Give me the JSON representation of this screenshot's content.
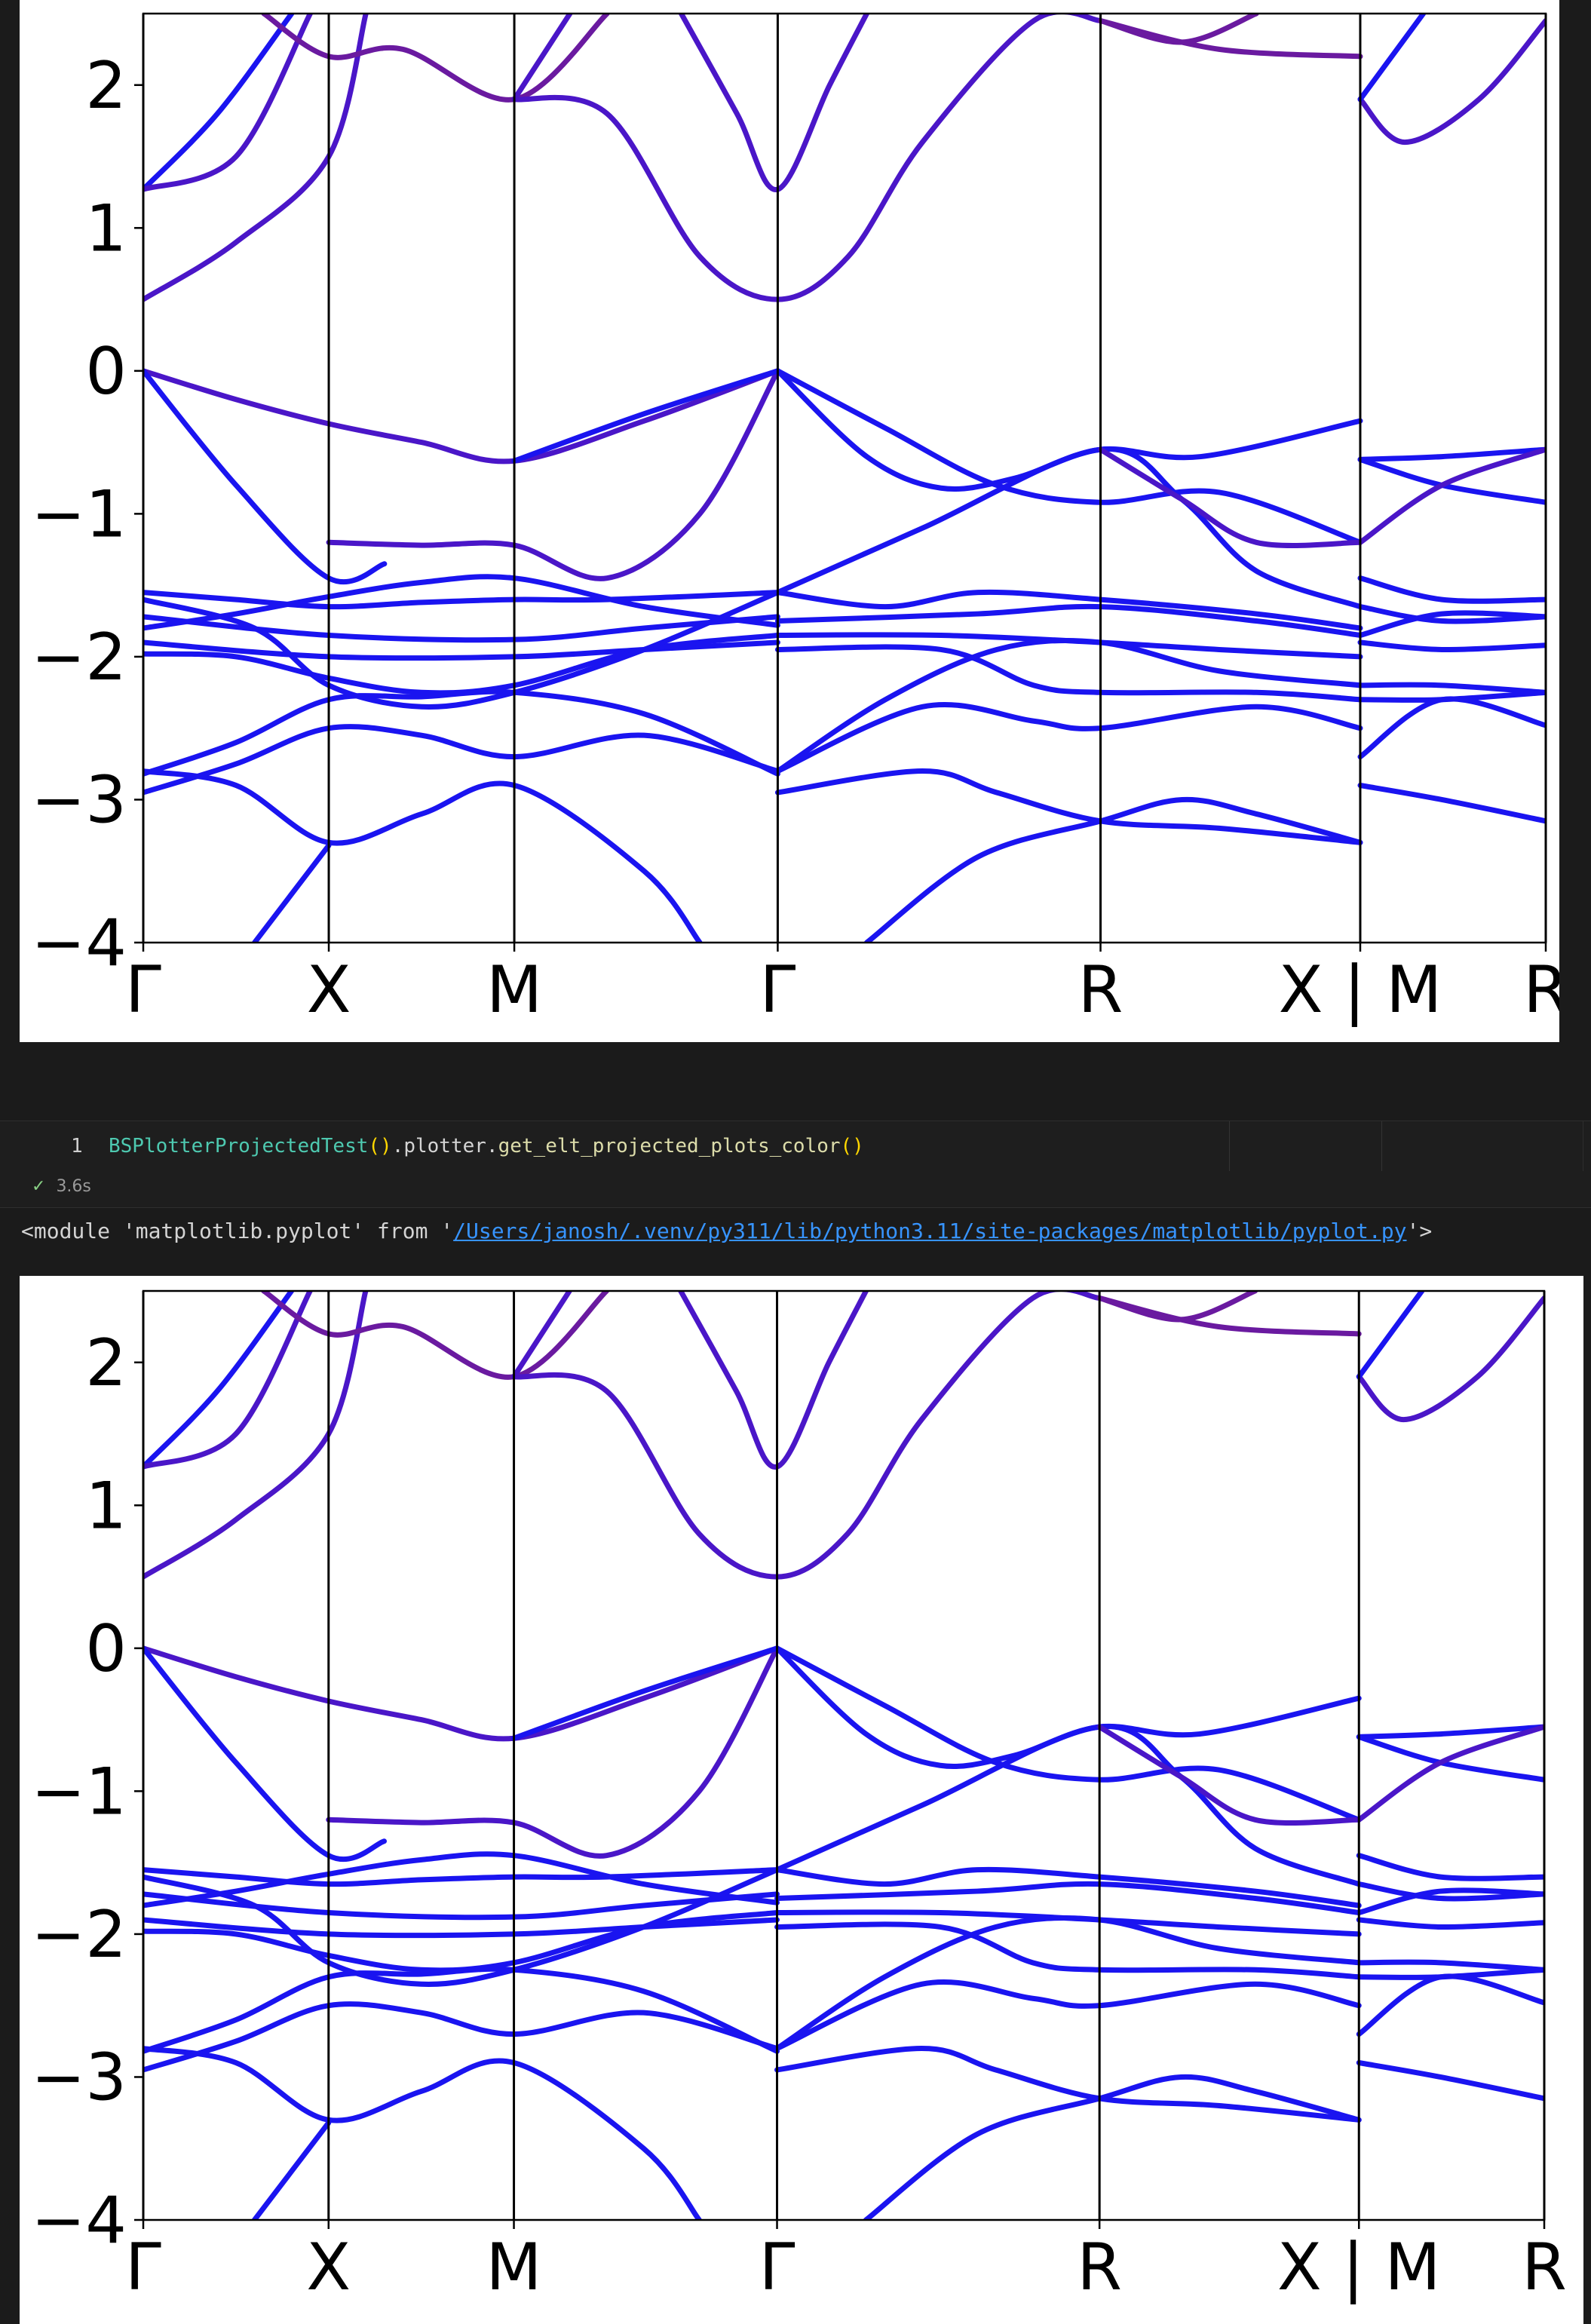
{
  "top_plot": {
    "yticks": [
      "2",
      "1",
      "0",
      "−1",
      "−2",
      "−3",
      "−4"
    ],
    "xticks": [
      "Γ",
      "X",
      "M",
      "Γ",
      "R",
      "X | M",
      "R"
    ]
  },
  "cell": {
    "line_number": "1",
    "code_class": "BSPlotterProjectedTest",
    "code_paren": "()",
    "code_mid": ".plotter.",
    "code_method": "get_elt_projected_plots_color",
    "code_call": "()",
    "status_check": "✓",
    "status_time": "3.6s"
  },
  "output": {
    "prefix": "<module 'matplotlib.pyplot' from '",
    "path": "/Users/janosh/.venv/py311/lib/python3.11/site-packages/matplotlib/pyplot.py",
    "suffix": "'>"
  },
  "bottom_plot": {
    "yticks": [
      "2",
      "1",
      "0",
      "−1",
      "−2",
      "−3",
      "−4"
    ],
    "xticks": [
      "Γ",
      "X",
      "M",
      "Γ",
      "R",
      "X | M",
      "R"
    ]
  },
  "colors": {
    "band_blue": "#1a14f0",
    "band_purple": "#5a1aa8",
    "band_magenta": "#7a1a8a"
  },
  "chart_data": {
    "type": "line",
    "xlabel": "",
    "ylabel": "",
    "ylim": [
      -4,
      2.5
    ],
    "k_path_labels": [
      "Γ",
      "X",
      "M",
      "Γ",
      "R",
      "X | M",
      "R"
    ],
    "bands_at_gamma": [
      -2.95,
      -2.8,
      -1.95,
      -1.85,
      -1.75,
      -1.55,
      0.0,
      0.5,
      1.27
    ],
    "valence_band_max": 0.0,
    "conduction_band_min": 0.5
  }
}
